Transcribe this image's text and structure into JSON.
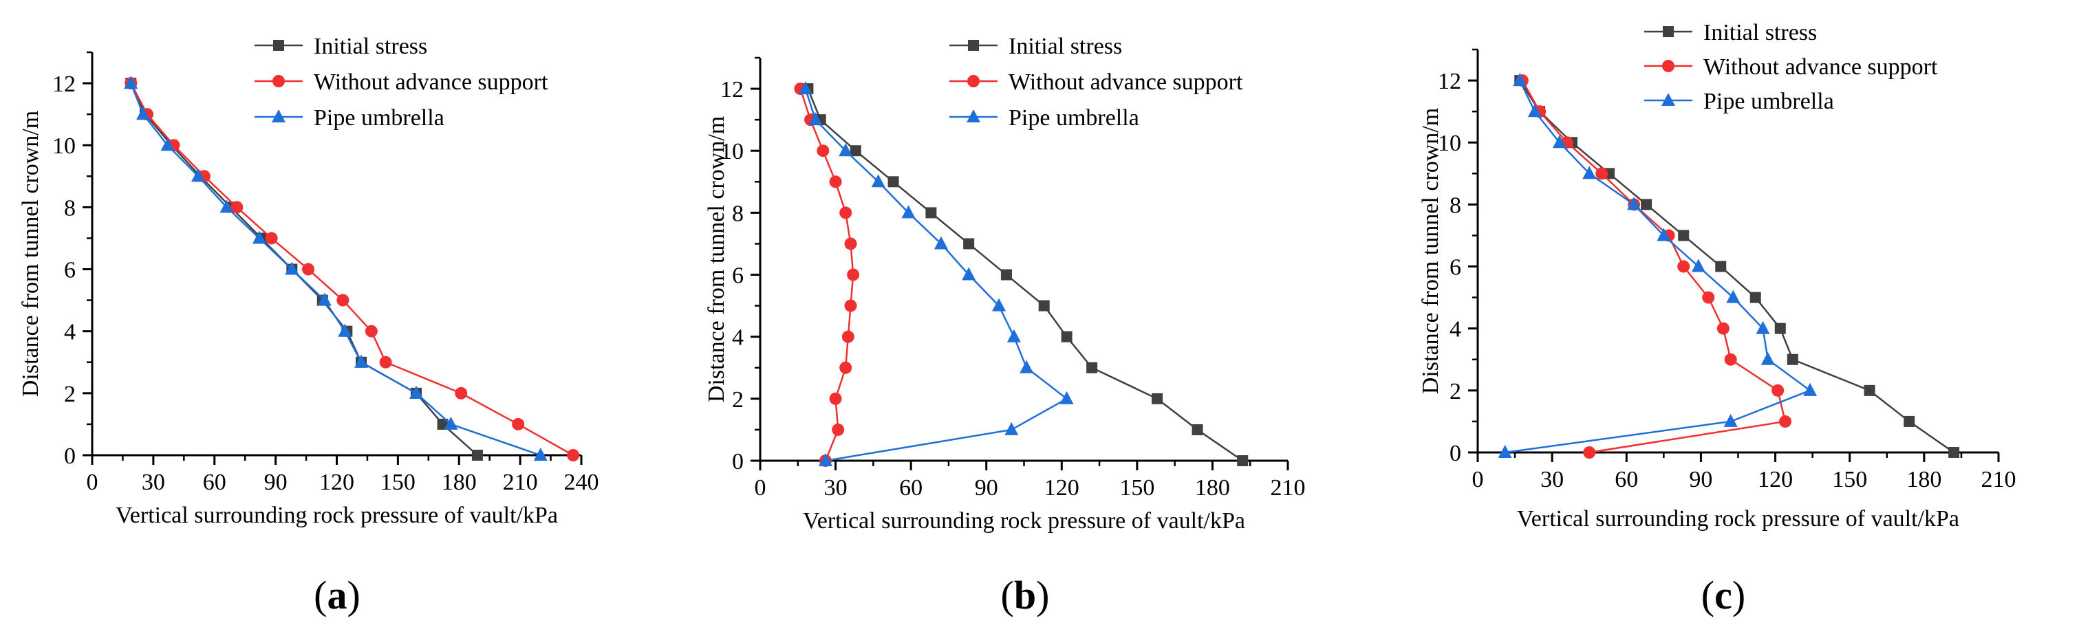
{
  "colors": {
    "initial_stress": "#404040",
    "without_advance_support": "#f03030",
    "pipe_umbrella": "#1f6fd8",
    "axis": "#000000"
  },
  "chart_data": [
    {
      "id": "a",
      "type": "line",
      "caption": "(a)",
      "caption_letter": "a",
      "xlabel": "Vertical surrounding rock pressure of vault/kPa",
      "ylabel": "Distance from tunnel crown/m",
      "xlim": [
        0,
        240
      ],
      "ylim": [
        0,
        13
      ],
      "xticks": [
        0,
        30,
        60,
        90,
        120,
        150,
        180,
        210,
        240
      ],
      "yticks": [
        0,
        2,
        4,
        6,
        8,
        10,
        12
      ],
      "legend_position": "top-right",
      "series": [
        {
          "name": "Initial stress",
          "color_key": "initial_stress",
          "marker": "square",
          "points": [
            [
              19,
              12
            ],
            [
              26,
              11
            ],
            [
              39,
              10
            ],
            [
              53,
              9
            ],
            [
              68,
              8
            ],
            [
              83,
              7
            ],
            [
              98,
              6
            ],
            [
              113,
              5
            ],
            [
              125,
              4
            ],
            [
              132,
              3
            ],
            [
              159,
              2
            ],
            [
              172,
              1
            ],
            [
              189,
              0
            ]
          ]
        },
        {
          "name": "Without advance support",
          "color_key": "without_advance_support",
          "marker": "circle",
          "points": [
            [
              19,
              12
            ],
            [
              27,
              11
            ],
            [
              40,
              10
            ],
            [
              55,
              9
            ],
            [
              71,
              8
            ],
            [
              88,
              7
            ],
            [
              106,
              6
            ],
            [
              123,
              5
            ],
            [
              137,
              4
            ],
            [
              144,
              3
            ],
            [
              181,
              2
            ],
            [
              209,
              1
            ],
            [
              236,
              0
            ]
          ]
        },
        {
          "name": "Pipe umbrella",
          "color_key": "pipe_umbrella",
          "marker": "triangle",
          "points": [
            [
              19,
              12
            ],
            [
              25,
              11
            ],
            [
              37,
              10
            ],
            [
              52,
              9
            ],
            [
              66,
              8
            ],
            [
              82,
              7
            ],
            [
              98,
              6
            ],
            [
              114,
              5
            ],
            [
              124,
              4
            ],
            [
              132,
              3
            ],
            [
              159,
              2
            ],
            [
              176,
              1
            ],
            [
              220,
              0
            ]
          ]
        }
      ]
    },
    {
      "id": "b",
      "type": "line",
      "caption": "(b)",
      "caption_letter": "b",
      "xlabel": "Vertical surrounding rock pressure of vault/kPa",
      "ylabel": "Distance from tunnel crown/m",
      "xlim": [
        0,
        210
      ],
      "ylim": [
        0,
        13
      ],
      "xticks": [
        0,
        30,
        60,
        90,
        120,
        150,
        180,
        210
      ],
      "yticks": [
        0,
        2,
        4,
        6,
        8,
        10,
        12
      ],
      "legend_position": "top-right",
      "series": [
        {
          "name": "Initial stress",
          "color_key": "initial_stress",
          "marker": "square",
          "points": [
            [
              19,
              12
            ],
            [
              24,
              11
            ],
            [
              38,
              10
            ],
            [
              53,
              9
            ],
            [
              68,
              8
            ],
            [
              83,
              7
            ],
            [
              98,
              6
            ],
            [
              113,
              5
            ],
            [
              122,
              4
            ],
            [
              132,
              3
            ],
            [
              158,
              2
            ],
            [
              174,
              1
            ],
            [
              192,
              0
            ]
          ]
        },
        {
          "name": "Without advance support",
          "color_key": "without_advance_support",
          "marker": "circle",
          "points": [
            [
              16,
              12
            ],
            [
              20,
              11
            ],
            [
              25,
              10
            ],
            [
              30,
              9
            ],
            [
              34,
              8
            ],
            [
              36,
              7
            ],
            [
              37,
              6
            ],
            [
              36,
              5
            ],
            [
              35,
              4
            ],
            [
              34,
              3
            ],
            [
              30,
              2
            ],
            [
              31,
              1
            ],
            [
              26,
              0
            ]
          ]
        },
        {
          "name": "Pipe umbrella",
          "color_key": "pipe_umbrella",
          "marker": "triangle",
          "points": [
            [
              18,
              12
            ],
            [
              22,
              11
            ],
            [
              34,
              10
            ],
            [
              47,
              9
            ],
            [
              59,
              8
            ],
            [
              72,
              7
            ],
            [
              83,
              6
            ],
            [
              95,
              5
            ],
            [
              101,
              4
            ],
            [
              106,
              3
            ],
            [
              122,
              2
            ],
            [
              100,
              1
            ],
            [
              26,
              0
            ]
          ]
        }
      ]
    },
    {
      "id": "c",
      "type": "line",
      "caption": "(c)",
      "caption_letter": "c",
      "xlabel": "Vertical surrounding rock pressure of vault/kPa",
      "ylabel": "Distance from tunnel crown/m",
      "xlim": [
        0,
        210
      ],
      "ylim": [
        0,
        13
      ],
      "xticks": [
        0,
        30,
        60,
        90,
        120,
        150,
        180,
        210
      ],
      "yticks": [
        0,
        2,
        4,
        6,
        8,
        10,
        12
      ],
      "legend_position": "top-right",
      "series": [
        {
          "name": "Initial stress",
          "color_key": "initial_stress",
          "marker": "square",
          "points": [
            [
              17,
              12
            ],
            [
              25,
              11
            ],
            [
              38,
              10
            ],
            [
              53,
              9
            ],
            [
              68,
              8
            ],
            [
              83,
              7
            ],
            [
              98,
              6
            ],
            [
              112,
              5
            ],
            [
              122,
              4
            ],
            [
              127,
              3
            ],
            [
              158,
              2
            ],
            [
              174,
              1
            ],
            [
              192,
              0
            ]
          ]
        },
        {
          "name": "Without advance support",
          "color_key": "without_advance_support",
          "marker": "circle",
          "points": [
            [
              18,
              12
            ],
            [
              25,
              11
            ],
            [
              36,
              10
            ],
            [
              50,
              9
            ],
            [
              63,
              8
            ],
            [
              77,
              7
            ],
            [
              83,
              6
            ],
            [
              93,
              5
            ],
            [
              99,
              4
            ],
            [
              102,
              3
            ],
            [
              121,
              2
            ],
            [
              124,
              1
            ],
            [
              45,
              0
            ]
          ]
        },
        {
          "name": "Pipe umbrella",
          "color_key": "pipe_umbrella",
          "marker": "triangle",
          "points": [
            [
              17,
              12
            ],
            [
              23,
              11
            ],
            [
              33,
              10
            ],
            [
              45,
              9
            ],
            [
              63,
              8
            ],
            [
              75,
              7
            ],
            [
              89,
              6
            ],
            [
              103,
              5
            ],
            [
              115,
              4
            ],
            [
              117,
              3
            ],
            [
              134,
              2
            ],
            [
              102,
              1
            ],
            [
              11,
              0
            ]
          ]
        }
      ]
    }
  ]
}
